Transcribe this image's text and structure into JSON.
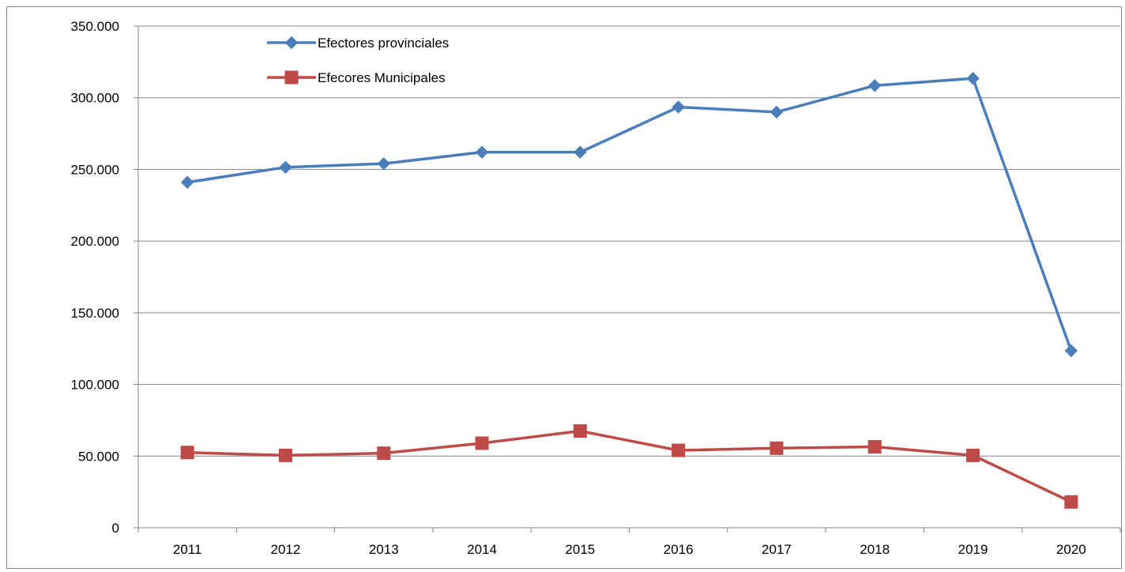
{
  "chart_data": {
    "type": "line",
    "title": "",
    "xlabel": "",
    "ylabel": "",
    "categories": [
      "2011",
      "2012",
      "2013",
      "2014",
      "2015",
      "2016",
      "2017",
      "2018",
      "2019",
      "2020"
    ],
    "ylim": [
      0,
      350000
    ],
    "yticks": [
      0,
      50000,
      100000,
      150000,
      200000,
      250000,
      300000,
      350000
    ],
    "ytick_labels": [
      "0",
      "50.000",
      "100.000",
      "150.000",
      "200.000",
      "250.000",
      "300.000",
      "350.000"
    ],
    "grid": "horizontal",
    "legend_position": "top-left",
    "series": [
      {
        "name": "Efectores provinciales",
        "color": "#4a7ebb",
        "marker": "diamond",
        "values": [
          241000,
          251500,
          254000,
          262000,
          262000,
          293500,
          290000,
          308500,
          313500,
          123500
        ]
      },
      {
        "name": "Efecores Municipales",
        "color": "#be4b48",
        "marker": "square",
        "values": [
          52500,
          50500,
          52000,
          59000,
          67500,
          54000,
          55500,
          56500,
          50500,
          18000
        ]
      }
    ]
  }
}
